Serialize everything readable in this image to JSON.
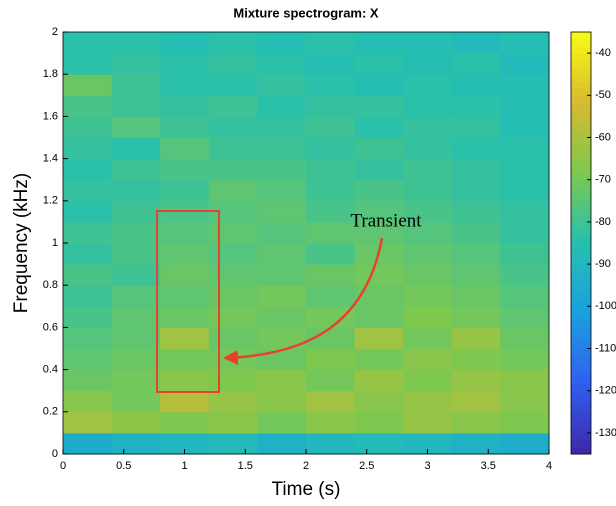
{
  "chart_data": {
    "type": "heatmap",
    "title": "Mixture spectrogram: X",
    "x_label": "Time (s)",
    "y_label": "Frequency (kHz)",
    "annotation": "Transient",
    "xbins": [
      0,
      0.4,
      0.8,
      1.2,
      1.6,
      2,
      2.4,
      2.8,
      3.2,
      3.6,
      4
    ],
    "ybins": [
      0,
      0.1,
      0.2,
      0.3,
      0.4,
      0.5,
      0.6,
      0.7,
      0.8,
      0.9,
      1,
      1.1,
      1.2,
      1.3,
      1.4,
      1.5,
      1.6,
      1.7,
      1.8,
      1.9,
      2
    ],
    "values": [
      [
        -95,
        -92,
        -90,
        -88,
        -92,
        -90,
        -88,
        -90,
        -92,
        -94
      ],
      [
        -62,
        -65,
        -68,
        -66,
        -70,
        -66,
        -68,
        -64,
        -66,
        -68
      ],
      [
        -66,
        -70,
        -58,
        -64,
        -66,
        -62,
        -66,
        -64,
        -62,
        -66
      ],
      [
        -72,
        -70,
        -66,
        -68,
        -66,
        -70,
        -64,
        -68,
        -64,
        -66
      ],
      [
        -74,
        -72,
        -70,
        -70,
        -72,
        -68,
        -70,
        -66,
        -68,
        -70
      ],
      [
        -76,
        -74,
        -62,
        -72,
        -70,
        -72,
        -62,
        -70,
        -64,
        -72
      ],
      [
        -78,
        -74,
        -72,
        -70,
        -72,
        -70,
        -72,
        -68,
        -70,
        -74
      ],
      [
        -80,
        -76,
        -74,
        -72,
        -70,
        -74,
        -72,
        -70,
        -72,
        -76
      ],
      [
        -78,
        -80,
        -72,
        -74,
        -74,
        -72,
        -70,
        -72,
        -74,
        -78
      ],
      [
        -82,
        -78,
        -74,
        -76,
        -74,
        -78,
        -72,
        -74,
        -76,
        -80
      ],
      [
        -80,
        -78,
        -76,
        -74,
        -76,
        -74,
        -74,
        -76,
        -78,
        -82
      ],
      [
        -84,
        -80,
        -78,
        -76,
        -74,
        -78,
        -76,
        -78,
        -80,
        -82
      ],
      [
        -82,
        -82,
        -80,
        -74,
        -76,
        -80,
        -78,
        -80,
        -82,
        -84
      ],
      [
        -84,
        -80,
        -78,
        -78,
        -78,
        -80,
        -82,
        -80,
        -82,
        -84
      ],
      [
        -82,
        -84,
        -76,
        -80,
        -80,
        -82,
        -80,
        -82,
        -84,
        -84
      ],
      [
        -80,
        -76,
        -80,
        -82,
        -82,
        -80,
        -84,
        -82,
        -82,
        -86
      ],
      [
        -78,
        -80,
        -82,
        -80,
        -84,
        -82,
        -82,
        -84,
        -84,
        -86
      ],
      [
        -72,
        -80,
        -84,
        -84,
        -82,
        -84,
        -86,
        -84,
        -86,
        -86
      ],
      [
        -84,
        -82,
        -84,
        -82,
        -84,
        -86,
        -84,
        -86,
        -84,
        -88
      ],
      [
        -84,
        -84,
        -86,
        -84,
        -86,
        -84,
        -86,
        -86,
        -88,
        -86
      ]
    ],
    "colormap": [
      "#3e26a8",
      "#2f5ff0",
      "#1a9fe0",
      "#25c0b0",
      "#7dc850",
      "#d8ba2f",
      "#f9fb15"
    ],
    "xlim": [
      0,
      4
    ],
    "ylim": [
      0,
      2
    ],
    "clim": [
      -135,
      -35
    ],
    "xticks": [
      0,
      0.5,
      1,
      1.5,
      2,
      2.5,
      3,
      3.5,
      4
    ],
    "yticks": [
      0,
      0.2,
      0.4,
      0.6,
      0.8,
      1,
      1.2,
      1.4,
      1.6,
      1.8,
      2
    ],
    "cticks": [
      -40,
      -50,
      -60,
      -70,
      -80,
      -90,
      -100,
      -110,
      -120,
      -130
    ]
  }
}
